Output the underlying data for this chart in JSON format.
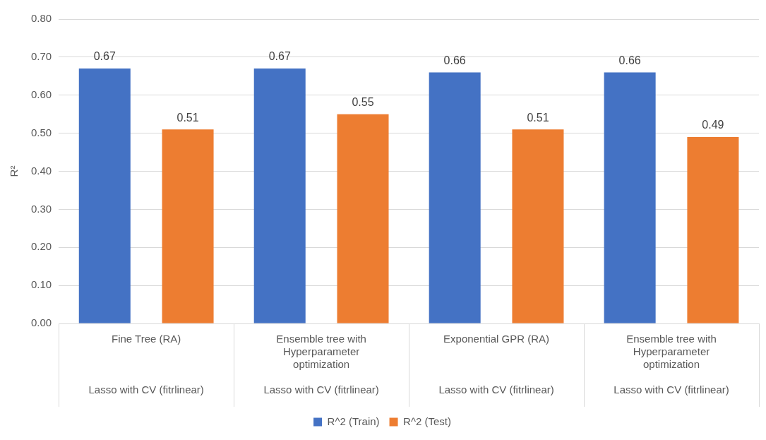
{
  "chart_data": {
    "type": "bar",
    "ylabel": "R²",
    "categories": [
      "Fine Tree (RA)\nLasso with CV (fitrlinear)",
      "Ensemble tree with Hyperparameter optimization\nLasso with CV (fitrlinear)",
      "Exponential GPR (RA)\nLasso with CV (fitrlinear)",
      "Ensemble tree with Hyperparameter optimization\nLasso with CV (fitrlinear)"
    ],
    "series": [
      {
        "name": "R^2 (Train)",
        "color": "#4472c4",
        "values": [
          0.67,
          0.67,
          0.66,
          0.66
        ]
      },
      {
        "name": "R^2 (Test)",
        "color": "#ed7d31",
        "values": [
          0.51,
          0.55,
          0.51,
          0.49
        ]
      }
    ],
    "ylim": [
      0,
      0.8
    ],
    "yticks": [
      {
        "value": 0,
        "label": "0.00"
      },
      {
        "value": 0.1,
        "label": "0.10"
      },
      {
        "value": 0.2,
        "label": "0.20"
      },
      {
        "value": 0.3,
        "label": "0.30"
      },
      {
        "value": 0.4,
        "label": "0.40"
      },
      {
        "value": 0.5,
        "label": "0.50"
      },
      {
        "value": 0.6,
        "label": "0.60"
      },
      {
        "value": 0.7,
        "label": "0.70"
      },
      {
        "value": 0.8,
        "label": "0.80"
      }
    ],
    "grid": "y",
    "legend": "bottom",
    "data_labels": true
  }
}
